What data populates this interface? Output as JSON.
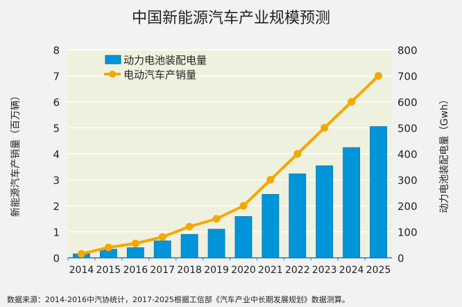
{
  "chart_data": {
    "type": "bar+line",
    "title": "中国新能源汽车产业规模预测",
    "categories": [
      "2014",
      "2015",
      "2016",
      "2017",
      "2018",
      "2019",
      "2020",
      "2021",
      "2022",
      "2023",
      "2024",
      "2025"
    ],
    "series": [
      {
        "name": "动力电池装配电量",
        "type": "bar",
        "axis": "right",
        "color": "#0095d9",
        "values": [
          15,
          33,
          39,
          65,
          90,
          110,
          159,
          244,
          323,
          354,
          424,
          505
        ]
      },
      {
        "name": "电动汽车产销量",
        "type": "line",
        "axis": "left",
        "color": "#f5a800",
        "values": [
          0.15,
          0.4,
          0.55,
          0.8,
          1.2,
          1.5,
          2,
          3,
          4,
          5,
          6,
          7
        ]
      }
    ],
    "ylabel_left": "新能源汽车产销量（百万辆）",
    "ylabel_right": "动力电池装配电量（Gwh）",
    "ylim_left": [
      0,
      8
    ],
    "ylim_right": [
      0,
      800
    ],
    "yticks_left": [
      "0",
      "1",
      "2",
      "3",
      "4",
      "5",
      "6",
      "7",
      "8"
    ],
    "yticks_right": [
      "0",
      "100",
      "200",
      "300",
      "400",
      "500",
      "600",
      "700",
      "800"
    ],
    "grid": true,
    "legend": "top-left"
  },
  "source": "数据来源：2014-2016中汽协统计，2017-2025根据工信部《汽车产业中长期发展规划》数据测算。"
}
